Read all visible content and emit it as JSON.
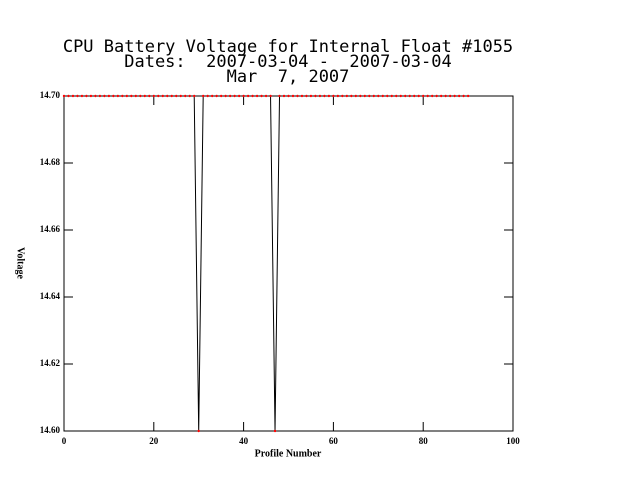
{
  "chart_data": {
    "type": "line",
    "title": "CPU Battery Voltage for Internal Float #1055",
    "subtitle": "Dates:  2007-03-04 -  2007-03-04",
    "date": "Mar  7, 2007",
    "x_label": "Profile Number",
    "y_label": "Voltage",
    "x": [
      0,
      1,
      2,
      3,
      4,
      5,
      6,
      7,
      8,
      9,
      10,
      11,
      12,
      13,
      14,
      15,
      16,
      17,
      18,
      19,
      20,
      21,
      22,
      23,
      24,
      25,
      26,
      27,
      28,
      29,
      30,
      31,
      32,
      33,
      34,
      35,
      36,
      37,
      38,
      39,
      40,
      41,
      42,
      43,
      44,
      45,
      46,
      47,
      48,
      49,
      50,
      51,
      52,
      53,
      54,
      55,
      56,
      57,
      58,
      59,
      60,
      61,
      62,
      63,
      64,
      65,
      66,
      67,
      68,
      69,
      70,
      71,
      72,
      73,
      74,
      75,
      76,
      77,
      78,
      79,
      80,
      81,
      82,
      83,
      84,
      85,
      86,
      87,
      88,
      89,
      90
    ],
    "series": [
      {
        "name": "Voltage",
        "color": "#000000",
        "marker_color": "#ff0000",
        "values": [
          14.7,
          14.7,
          14.7,
          14.7,
          14.7,
          14.7,
          14.7,
          14.7,
          14.7,
          14.7,
          14.7,
          14.7,
          14.7,
          14.7,
          14.7,
          14.7,
          14.7,
          14.7,
          14.7,
          14.7,
          14.7,
          14.7,
          14.7,
          14.7,
          14.7,
          14.7,
          14.7,
          14.7,
          14.7,
          14.7,
          14.6,
          14.7,
          14.7,
          14.7,
          14.7,
          14.7,
          14.7,
          14.7,
          14.7,
          14.7,
          14.7,
          14.7,
          14.7,
          14.7,
          14.7,
          14.7,
          14.7,
          14.6,
          14.7,
          14.7,
          14.7,
          14.7,
          14.7,
          14.7,
          14.7,
          14.7,
          14.7,
          14.7,
          14.7,
          14.7,
          14.7,
          14.7,
          14.7,
          14.7,
          14.7,
          14.7,
          14.7,
          14.7,
          14.7,
          14.7,
          14.7,
          14.7,
          14.7,
          14.7,
          14.7,
          14.7,
          14.7,
          14.7,
          14.7,
          14.7,
          14.7,
          14.7,
          14.7,
          14.7,
          14.7,
          14.7,
          14.7,
          14.7,
          14.7,
          14.7,
          14.7
        ]
      }
    ],
    "xlim": [
      0,
      100
    ],
    "xticks": [
      0,
      20,
      40,
      60,
      80,
      100
    ],
    "ylim": [
      14.6,
      14.7
    ],
    "yticks": [
      {
        "value": 14.6,
        "label": "14.60"
      },
      14.62,
      14.64,
      14.66,
      14.68,
      {
        "value": 14.7,
        "label": "14.70"
      }
    ]
  }
}
